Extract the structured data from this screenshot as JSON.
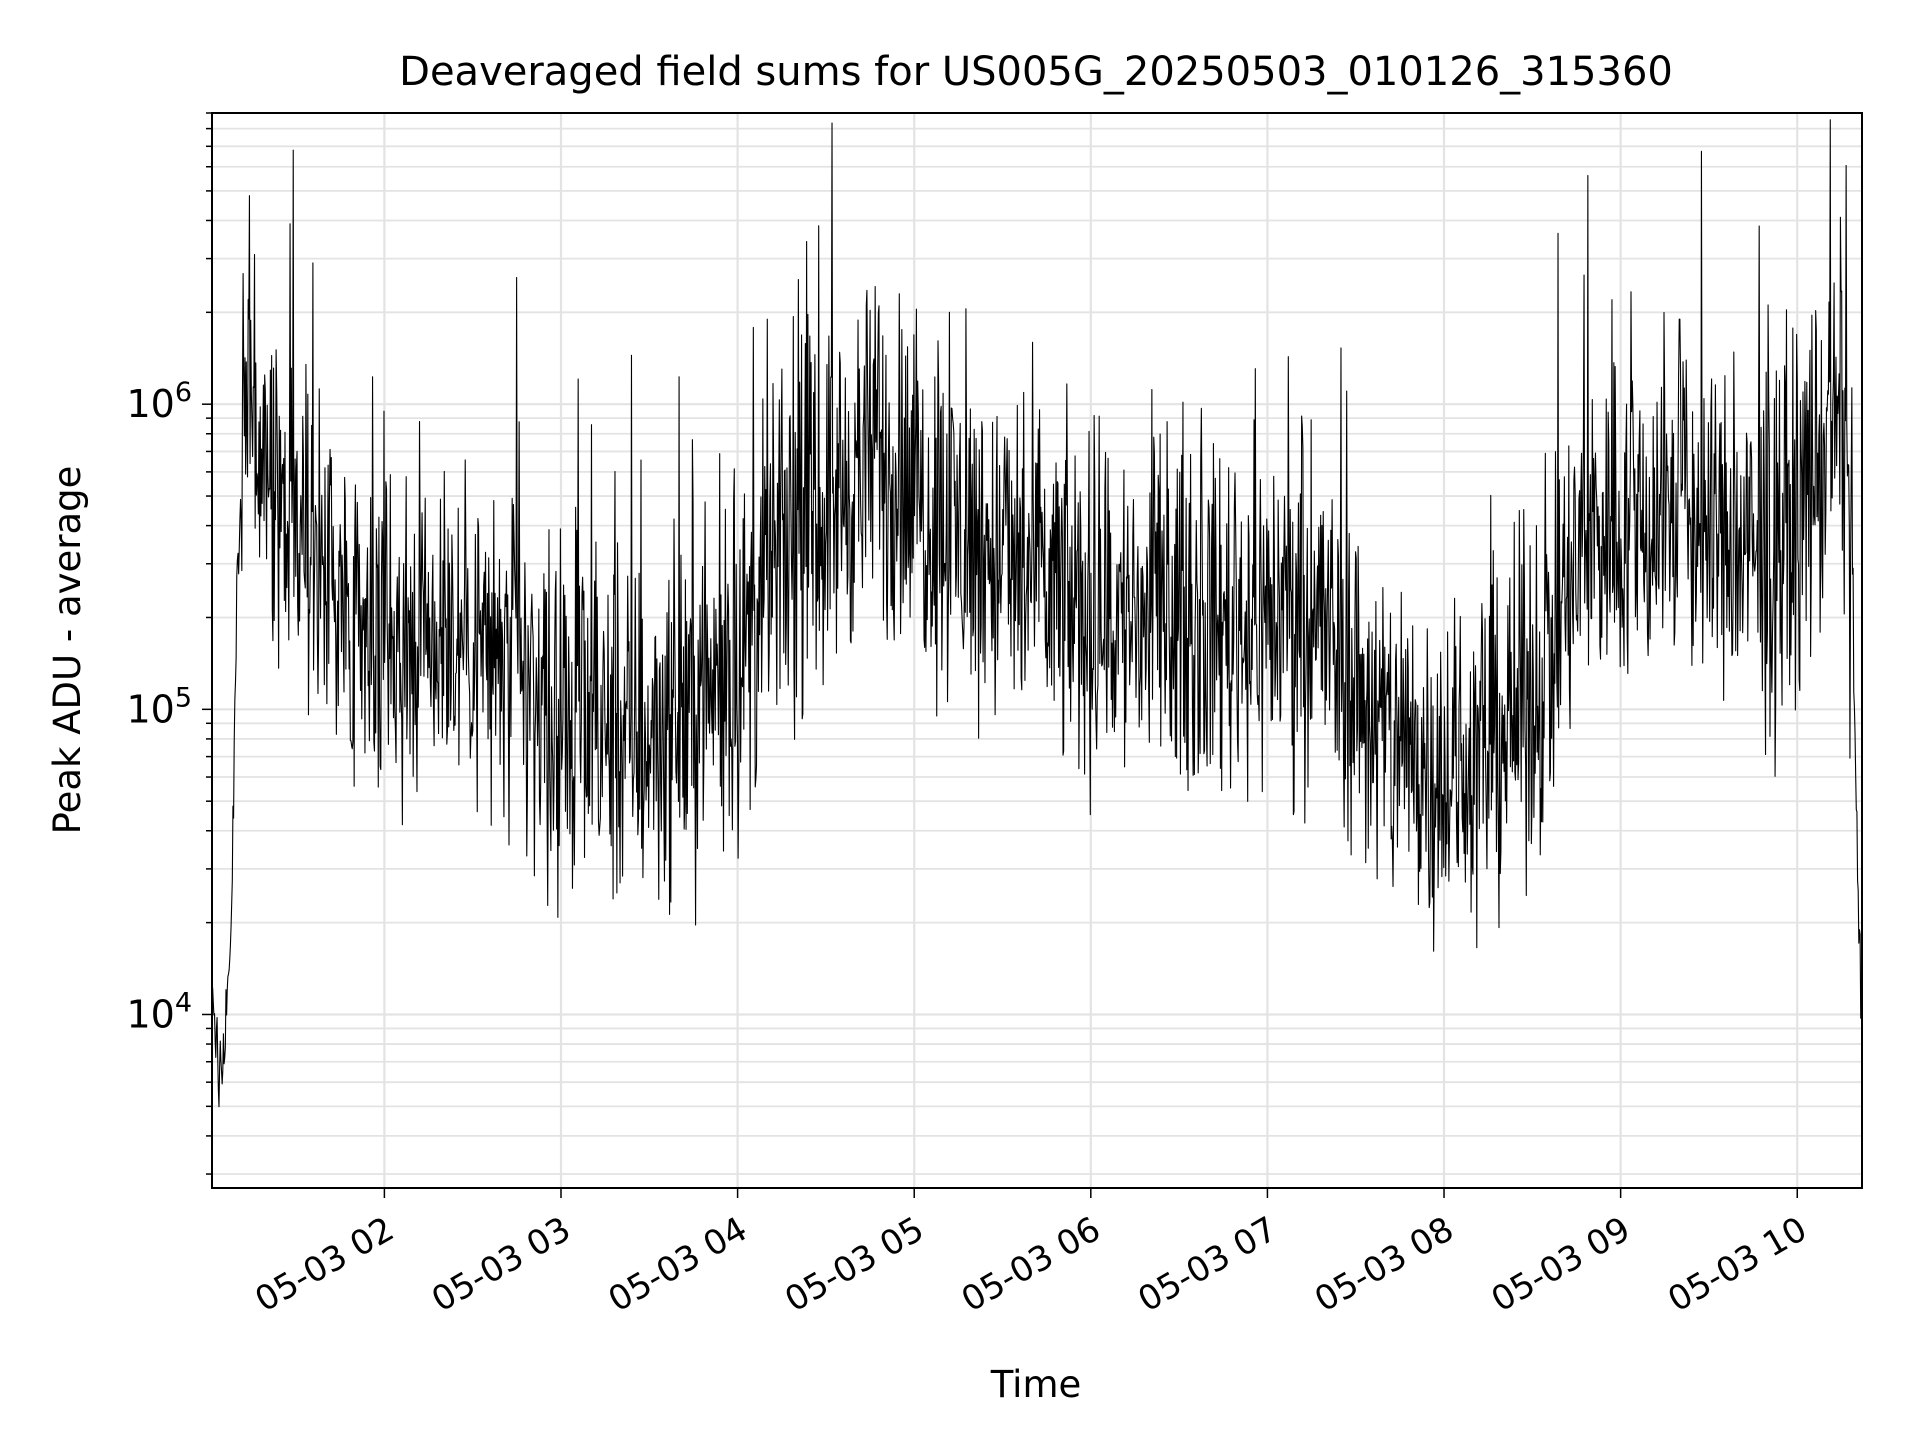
{
  "chart_data": {
    "type": "line",
    "title": "Deaveraged field sums for US005G_20250503_010126_315360",
    "xlabel": "Time",
    "ylabel": "Peak ADU - average",
    "x_scale": "time",
    "y_scale": "log",
    "x_range": [
      "2025-05-03T01:01:26",
      "2025-05-03T10:22:00"
    ],
    "ylim": [
      2700,
      9000000
    ],
    "grid": true,
    "x_tick_labels": [
      {
        "at": "2025-05-03T02:00",
        "label": "05-03 02"
      },
      {
        "at": "2025-05-03T03:00",
        "label": "05-03 03"
      },
      {
        "at": "2025-05-03T04:00",
        "label": "05-03 04"
      },
      {
        "at": "2025-05-03T05:00",
        "label": "05-03 05"
      },
      {
        "at": "2025-05-03T06:00",
        "label": "05-03 06"
      },
      {
        "at": "2025-05-03T07:00",
        "label": "05-03 07"
      },
      {
        "at": "2025-05-03T08:00",
        "label": "05-03 08"
      },
      {
        "at": "2025-05-03T09:00",
        "label": "05-03 09"
      },
      {
        "at": "2025-05-03T10:00",
        "label": "05-03 10"
      }
    ],
    "y_tick_labels": [
      {
        "value": 10000,
        "base": "10",
        "exp": "4"
      },
      {
        "value": 100000,
        "base": "10",
        "exp": "5"
      },
      {
        "value": 1000000,
        "base": "10",
        "exp": "6"
      }
    ],
    "series": [
      {
        "color": "#000000",
        "profile": [
          [
            "2025-05-03T01:01:26",
            12000
          ],
          [
            "2025-05-03T01:04",
            6000
          ],
          [
            "2025-05-03T01:06",
            9000
          ],
          [
            "2025-05-03T01:08",
            20000
          ],
          [
            "2025-05-03T01:10",
            300000
          ],
          [
            "2025-05-03T01:14",
            1100000
          ],
          [
            "2025-05-03T01:20",
            450000
          ],
          [
            "2025-05-03T01:40",
            280000
          ],
          [
            "2025-05-03T01:55",
            200000
          ],
          [
            "2025-05-03T02:30",
            180000
          ],
          [
            "2025-05-03T03:00",
            85000
          ],
          [
            "2025-05-03T03:30",
            80000
          ],
          [
            "2025-05-03T04:00",
            140000
          ],
          [
            "2025-05-03T04:15",
            320000
          ],
          [
            "2025-05-03T04:45",
            650000
          ],
          [
            "2025-05-03T05:15",
            380000
          ],
          [
            "2025-05-03T06:00",
            200000
          ],
          [
            "2025-05-03T06:40",
            190000
          ],
          [
            "2025-05-03T07:15",
            220000
          ],
          [
            "2025-05-03T07:40",
            80000
          ],
          [
            "2025-05-03T08:05",
            60000
          ],
          [
            "2025-05-03T08:30",
            110000
          ],
          [
            "2025-05-03T08:50",
            380000
          ],
          [
            "2025-05-03T09:20",
            450000
          ],
          [
            "2025-05-03T09:50",
            280000
          ],
          [
            "2025-05-03T10:10",
            700000
          ],
          [
            "2025-05-03T10:15",
            1000000
          ],
          [
            "2025-05-03T10:18",
            400000
          ],
          [
            "2025-05-03T10:20",
            50000
          ],
          [
            "2025-05-03T10:22",
            8000
          ]
        ],
        "spikes": [
          [
            "2025-05-03T01:14",
            1900000
          ],
          [
            "2025-05-03T01:28",
            3900000
          ],
          [
            "2025-05-03T01:29",
            6800000
          ],
          [
            "2025-05-03T02:45",
            2600000
          ],
          [
            "2025-05-03T04:10",
            1900000
          ],
          [
            "2025-05-03T04:48",
            2100000
          ],
          [
            "2025-05-03T04:55",
            2300000
          ],
          [
            "2025-05-03T05:12",
            2000000
          ],
          [
            "2025-05-03T08:57",
            2200000
          ],
          [
            "2025-05-03T09:20",
            1900000
          ]
        ]
      }
    ]
  }
}
